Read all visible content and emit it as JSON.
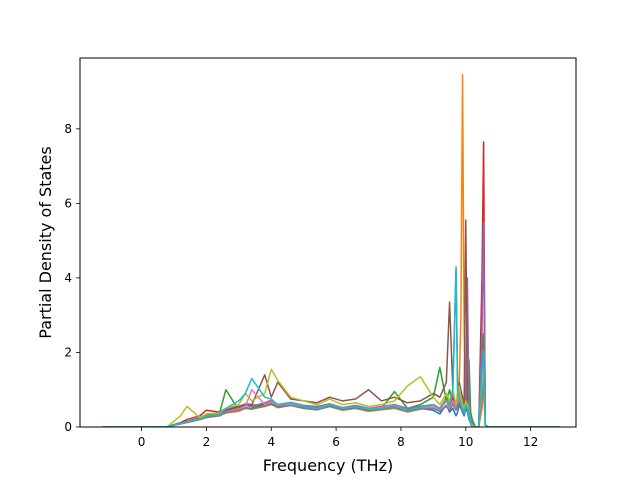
{
  "chart_data": {
    "type": "line",
    "title": "",
    "xlabel": "Frequency (THz)",
    "ylabel": "Partial Density of States",
    "xlim": [
      -1.9,
      13.4
    ],
    "ylim": [
      0,
      9.9
    ],
    "x_ticks": [
      0,
      2,
      4,
      6,
      8,
      10,
      12
    ],
    "x_tick_labels": [
      "0",
      "2",
      "4",
      "6",
      "8",
      "10",
      "12"
    ],
    "y_ticks": [
      0,
      2,
      4,
      6,
      8
    ],
    "y_tick_labels": [
      "0",
      "2",
      "4",
      "6",
      "8"
    ],
    "grid": false,
    "legend": "none",
    "x": [
      -1.2,
      0.0,
      0.8,
      1.2,
      1.4,
      1.8,
      2.0,
      2.4,
      2.6,
      3.0,
      3.2,
      3.4,
      3.8,
      4.0,
      4.2,
      4.6,
      5.0,
      5.4,
      5.8,
      6.2,
      6.6,
      7.0,
      7.4,
      7.8,
      8.2,
      8.6,
      9.0,
      9.2,
      9.4,
      9.5,
      9.6,
      9.7,
      9.75,
      9.8,
      9.85,
      9.9,
      9.95,
      10.0,
      10.05,
      10.1,
      10.15,
      10.2,
      10.3,
      10.4,
      10.5,
      10.55,
      10.6,
      10.7,
      11.0,
      12.9
    ],
    "series": [
      {
        "color": "#1f77b4",
        "values": [
          0,
          0,
          0.01,
          0.1,
          0.15,
          0.22,
          0.28,
          0.35,
          0.45,
          0.52,
          0.6,
          0.55,
          0.62,
          0.7,
          0.58,
          0.63,
          0.55,
          0.5,
          0.6,
          0.48,
          0.52,
          0.45,
          0.5,
          0.55,
          0.42,
          0.5,
          0.45,
          0.35,
          0.6,
          0.4,
          0.5,
          0.3,
          0.4,
          0.6,
          0.5,
          0.4,
          0.3,
          0.5,
          0.4,
          0.2,
          0.1,
          0.0,
          0.0,
          0.0,
          3.0,
          5.7,
          0.05,
          0,
          0,
          0
        ]
      },
      {
        "color": "#ff7f0e",
        "values": [
          0,
          0,
          0.01,
          0.08,
          0.12,
          0.2,
          0.25,
          0.3,
          0.38,
          0.42,
          0.5,
          0.48,
          0.55,
          0.6,
          0.52,
          0.58,
          0.5,
          0.46,
          0.55,
          0.45,
          0.5,
          0.42,
          0.46,
          0.5,
          0.4,
          0.48,
          0.55,
          0.5,
          0.8,
          0.6,
          1.0,
          0.5,
          0.7,
          1.2,
          3.0,
          9.45,
          2.5,
          0.8,
          0.5,
          0.3,
          0.1,
          0.0,
          0.0,
          0.0,
          0.5,
          1.0,
          0.05,
          0,
          0,
          0
        ]
      },
      {
        "color": "#2ca02c",
        "values": [
          0,
          0,
          0.01,
          0.1,
          0.12,
          0.2,
          0.3,
          0.36,
          1.0,
          0.45,
          0.52,
          0.5,
          0.6,
          0.65,
          0.55,
          0.6,
          0.52,
          0.5,
          0.58,
          0.5,
          0.55,
          0.48,
          0.5,
          0.95,
          0.5,
          0.6,
          0.8,
          1.6,
          0.7,
          1.0,
          0.6,
          0.5,
          0.8,
          0.7,
          0.6,
          0.5,
          0.4,
          1.0,
          0.5,
          1.8,
          0.4,
          0.2,
          0.0,
          0.0,
          2.0,
          2.5,
          0.05,
          0,
          0,
          0
        ]
      },
      {
        "color": "#d62728",
        "values": [
          0,
          0,
          0.01,
          0.12,
          0.2,
          0.3,
          0.45,
          0.4,
          0.5,
          0.55,
          0.6,
          0.58,
          0.62,
          0.7,
          0.6,
          0.65,
          0.56,
          0.52,
          0.62,
          0.5,
          0.56,
          0.5,
          0.52,
          0.6,
          0.48,
          0.55,
          0.6,
          0.5,
          0.7,
          0.6,
          0.8,
          0.5,
          0.9,
          0.7,
          0.6,
          0.5,
          0.4,
          0.6,
          0.5,
          0.3,
          0.1,
          0.0,
          0.0,
          0.0,
          4.0,
          7.65,
          0.05,
          0,
          0,
          0
        ]
      },
      {
        "color": "#9467bd",
        "values": [
          0,
          0,
          0.01,
          0.09,
          0.14,
          0.22,
          0.3,
          0.32,
          0.42,
          0.5,
          0.58,
          0.55,
          0.65,
          0.72,
          0.6,
          0.66,
          0.58,
          0.55,
          0.62,
          0.52,
          0.58,
          0.5,
          0.55,
          0.6,
          0.5,
          0.55,
          0.6,
          0.5,
          0.7,
          0.55,
          0.9,
          0.6,
          0.8,
          1.0,
          0.7,
          0.6,
          0.5,
          0.8,
          4.0,
          0.4,
          0.2,
          0.1,
          0.0,
          0.0,
          2.5,
          5.5,
          0.05,
          0,
          0,
          0
        ]
      },
      {
        "color": "#8c564b",
        "values": [
          0,
          0,
          0.01,
          0.1,
          0.15,
          0.25,
          0.32,
          0.36,
          0.45,
          0.55,
          0.62,
          0.6,
          1.4,
          0.8,
          1.2,
          0.75,
          0.7,
          0.65,
          0.8,
          0.7,
          0.75,
          1.0,
          0.7,
          0.8,
          0.65,
          0.7,
          0.9,
          0.8,
          1.2,
          3.35,
          1.0,
          4.2,
          0.8,
          1.2,
          1.0,
          0.8,
          0.6,
          5.55,
          0.5,
          0.3,
          0.1,
          0.0,
          0.0,
          0.0,
          1.5,
          2.0,
          0.05,
          0,
          0,
          0
        ]
      },
      {
        "color": "#e377c2",
        "values": [
          0,
          0,
          0.01,
          0.08,
          0.12,
          0.2,
          0.28,
          0.3,
          0.4,
          0.48,
          0.55,
          1.0,
          0.6,
          0.68,
          0.58,
          0.62,
          0.55,
          0.5,
          0.6,
          0.5,
          0.55,
          0.48,
          0.52,
          0.58,
          0.45,
          0.52,
          0.55,
          0.45,
          0.6,
          0.5,
          0.7,
          0.5,
          0.6,
          0.8,
          0.6,
          0.5,
          0.4,
          0.6,
          0.5,
          0.3,
          0.1,
          0.0,
          0.0,
          0.0,
          1.0,
          1.5,
          0.05,
          0,
          0,
          0
        ]
      },
      {
        "color": "#7f7f7f",
        "values": [
          0,
          0,
          0.01,
          0.09,
          0.13,
          0.2,
          0.26,
          0.3,
          0.38,
          0.45,
          0.5,
          0.48,
          0.56,
          0.62,
          0.52,
          0.58,
          0.5,
          0.46,
          0.55,
          0.46,
          0.5,
          0.44,
          0.48,
          0.52,
          0.42,
          0.48,
          0.5,
          0.42,
          0.55,
          0.45,
          0.6,
          0.45,
          0.55,
          0.7,
          0.55,
          0.45,
          0.35,
          0.55,
          0.45,
          0.25,
          0.1,
          0.0,
          0.0,
          0.0,
          0.8,
          1.2,
          0.05,
          0,
          0,
          0
        ]
      },
      {
        "color": "#bcbd22",
        "values": [
          0,
          0,
          0.01,
          0.3,
          0.55,
          0.25,
          0.35,
          0.38,
          0.5,
          0.6,
          0.9,
          0.7,
          0.9,
          1.55,
          1.25,
          0.8,
          0.7,
          0.6,
          0.75,
          0.6,
          0.65,
          0.55,
          0.6,
          0.7,
          1.1,
          1.35,
          0.8,
          0.6,
          0.9,
          0.7,
          1.0,
          0.6,
          0.8,
          1.1,
          0.8,
          0.6,
          0.5,
          0.7,
          0.6,
          0.3,
          0.1,
          0.0,
          0.0,
          0.0,
          1.2,
          1.8,
          0.05,
          0,
          0,
          0
        ]
      },
      {
        "color": "#17becf",
        "values": [
          0,
          0,
          0.01,
          0.1,
          0.14,
          0.22,
          0.3,
          0.34,
          0.5,
          0.7,
          0.9,
          1.3,
          0.8,
          0.75,
          0.6,
          0.65,
          0.56,
          0.5,
          0.6,
          0.5,
          0.55,
          0.48,
          0.5,
          0.56,
          0.45,
          0.52,
          0.6,
          0.5,
          0.7,
          0.6,
          1.0,
          4.3,
          0.9,
          0.8,
          0.6,
          0.5,
          0.4,
          0.6,
          0.5,
          0.3,
          0.1,
          0.0,
          0.0,
          0.0,
          1.5,
          2.0,
          0.05,
          0,
          0,
          0
        ]
      }
    ]
  }
}
